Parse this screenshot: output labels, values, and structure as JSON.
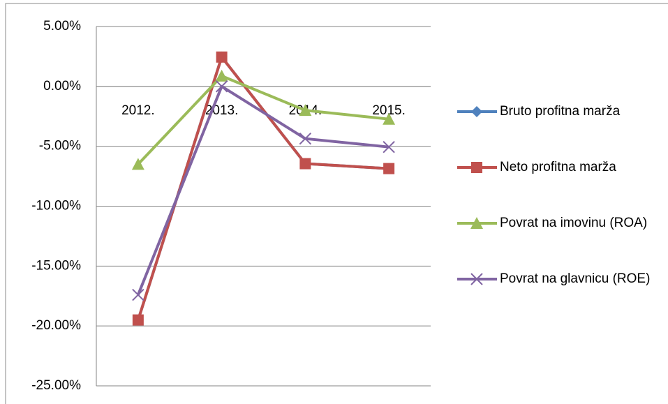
{
  "chart_data": {
    "type": "line",
    "categories": [
      "2012.",
      "2013.",
      "2014.",
      "2015."
    ],
    "series": [
      {
        "name": "Bruto profitna marža",
        "color": "#4f81bd",
        "marker": "diamond",
        "values": [
          -19.5,
          2.45,
          -6.45,
          -6.86
        ]
      },
      {
        "name": "Neto profitna marža",
        "color": "#c0504d",
        "marker": "square",
        "values": [
          -19.5,
          2.45,
          -6.45,
          -6.86
        ]
      },
      {
        "name": "Povrat na imovinu (ROA)",
        "color": "#9bbb59",
        "marker": "triangle",
        "values": [
          -6.5,
          0.87,
          -2.0,
          -2.73
        ]
      },
      {
        "name": "Povrat na glavnicu (ROE)",
        "color": "#8064a2",
        "marker": "x",
        "values": [
          -17.4,
          0.0,
          -4.36,
          -5.06
        ]
      }
    ],
    "ylim": [
      -25,
      5
    ],
    "yticks": [
      {
        "value": 5,
        "label": "5.00%"
      },
      {
        "value": 0,
        "label": "0.00%"
      },
      {
        "value": -5,
        "label": "-5.00%"
      },
      {
        "value": -10,
        "label": "-10.00%"
      },
      {
        "value": -15,
        "label": "-15.00%"
      },
      {
        "value": -20,
        "label": "-20.00%"
      },
      {
        "value": -25,
        "label": "-25.00%"
      }
    ],
    "grid": true,
    "legend": "right"
  }
}
